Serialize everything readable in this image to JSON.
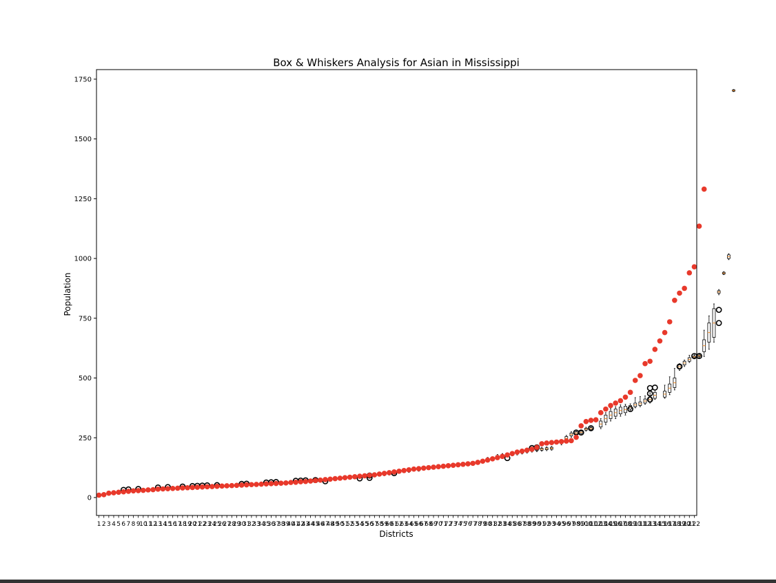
{
  "chart_data": {
    "type": "box",
    "title": "Box & Whiskers Analysis for Asian in Mississippi",
    "xlabel": "Districts",
    "ylabel": "Population",
    "ylim": [
      -75,
      1790
    ],
    "y_ticks": [
      0,
      250,
      500,
      750,
      1000,
      1250,
      1500,
      1750
    ],
    "categories": [
      "1",
      "2",
      "3",
      "4",
      "5",
      "6",
      "7",
      "8",
      "9",
      "10",
      "11",
      "12",
      "13",
      "14",
      "15",
      "16",
      "17",
      "18",
      "19",
      "20",
      "21",
      "22",
      "23",
      "24",
      "25",
      "26",
      "27",
      "28",
      "29",
      "30",
      "31",
      "32",
      "33",
      "34",
      "35",
      "36",
      "37",
      "38",
      "39",
      "40",
      "41",
      "42",
      "43",
      "44",
      "45",
      "46",
      "47",
      "48",
      "49",
      "50",
      "51",
      "52",
      "53",
      "54",
      "55",
      "56",
      "57",
      "58",
      "59",
      "60",
      "61",
      "62",
      "63",
      "64",
      "65",
      "66",
      "67",
      "68",
      "69",
      "70",
      "71",
      "72",
      "73",
      "74",
      "75",
      "76",
      "77",
      "78",
      "79",
      "80",
      "81",
      "82",
      "83",
      "84",
      "85",
      "86",
      "87",
      "88",
      "89",
      "90",
      "91",
      "92",
      "93",
      "94",
      "95",
      "96",
      "97",
      "98",
      "99",
      "100",
      "101",
      "102",
      "103",
      "104",
      "105",
      "106",
      "107",
      "108",
      "109",
      "110",
      "111",
      "112",
      "113",
      "114",
      "115",
      "116",
      "117",
      "118",
      "119",
      "120",
      "121",
      "122"
    ],
    "grid": false,
    "point_color": "#e8392b",
    "point_values": [
      10,
      12,
      18,
      20,
      22,
      24,
      26,
      28,
      29,
      30,
      32,
      33,
      35,
      36,
      37,
      38,
      39,
      40,
      41,
      42,
      43,
      44,
      45,
      46,
      47,
      48,
      49,
      50,
      51,
      52,
      53,
      54,
      55,
      56,
      57,
      58,
      59,
      60,
      61,
      63,
      64,
      66,
      67,
      69,
      71,
      73,
      75,
      77,
      79,
      81,
      83,
      85,
      87,
      89,
      91,
      93,
      95,
      98,
      101,
      104,
      107,
      110,
      113,
      116,
      119,
      121,
      123,
      125,
      127,
      129,
      131,
      133,
      135,
      137,
      139,
      141,
      143,
      147,
      152,
      157,
      162,
      167,
      172,
      178,
      184,
      190,
      194,
      198,
      202,
      210,
      225,
      228,
      230,
      232,
      234,
      236,
      238,
      252,
      300,
      318,
      323,
      325,
      355,
      370,
      385,
      395,
      405,
      420,
      440,
      490,
      510,
      560,
      570,
      620,
      655,
      690,
      735,
      825,
      855,
      875,
      940,
      965,
      1135,
      1290
    ],
    "boxes": [
      {
        "i": 6,
        "q1": 26,
        "q3": 30,
        "lo": 24,
        "hi": 32,
        "outliers": [
          32
        ]
      },
      {
        "i": 7,
        "q1": 28,
        "q3": 32,
        "lo": 26,
        "hi": 34,
        "outliers": [
          34
        ]
      },
      {
        "i": 9,
        "q1": 30,
        "q3": 34,
        "lo": 28,
        "hi": 36,
        "outliers": [
          36
        ]
      },
      {
        "i": 13,
        "q1": 36,
        "q3": 40,
        "lo": 34,
        "hi": 42,
        "outliers": [
          42
        ]
      },
      {
        "i": 15,
        "q1": 38,
        "q3": 42,
        "lo": 36,
        "hi": 44,
        "outliers": [
          44
        ]
      },
      {
        "i": 18,
        "q1": 40,
        "q3": 44,
        "lo": 38,
        "hi": 46,
        "outliers": [
          46
        ]
      },
      {
        "i": 20,
        "q1": 43,
        "q3": 46,
        "lo": 41,
        "hi": 48,
        "outliers": [
          48
        ]
      },
      {
        "i": 21,
        "q1": 44,
        "q3": 47,
        "lo": 42,
        "hi": 49,
        "outliers": [
          49
        ]
      },
      {
        "i": 22,
        "q1": 45,
        "q3": 48,
        "lo": 43,
        "hi": 50,
        "outliers": [
          50
        ]
      },
      {
        "i": 23,
        "q1": 46,
        "q3": 49,
        "lo": 44,
        "hi": 51,
        "outliers": [
          51
        ]
      },
      {
        "i": 25,
        "q1": 47,
        "q3": 50,
        "lo": 45,
        "hi": 52,
        "outliers": [
          52
        ]
      },
      {
        "i": 30,
        "q1": 52,
        "q3": 55,
        "lo": 50,
        "hi": 57,
        "outliers": [
          57
        ]
      },
      {
        "i": 31,
        "q1": 53,
        "q3": 56,
        "lo": 51,
        "hi": 58,
        "outliers": [
          58
        ]
      },
      {
        "i": 35,
        "q1": 57,
        "q3": 61,
        "lo": 55,
        "hi": 63,
        "outliers": [
          63
        ]
      },
      {
        "i": 36,
        "q1": 58,
        "q3": 62,
        "lo": 56,
        "hi": 64,
        "outliers": [
          64
        ]
      },
      {
        "i": 37,
        "q1": 59,
        "q3": 63,
        "lo": 57,
        "hi": 65,
        "outliers": [
          65
        ]
      },
      {
        "i": 38,
        "q1": 60,
        "q3": 64,
        "lo": 58,
        "hi": 66,
        "outliers": []
      },
      {
        "i": 39,
        "q1": 61,
        "q3": 65,
        "lo": 59,
        "hi": 67,
        "outliers": []
      },
      {
        "i": 41,
        "q1": 64,
        "q3": 68,
        "lo": 62,
        "hi": 70,
        "outliers": [
          70
        ]
      },
      {
        "i": 42,
        "q1": 65,
        "q3": 69,
        "lo": 63,
        "hi": 71,
        "outliers": [
          71
        ]
      },
      {
        "i": 43,
        "q1": 66,
        "q3": 70,
        "lo": 64,
        "hi": 72,
        "outliers": [
          72
        ]
      },
      {
        "i": 45,
        "q1": 69,
        "q3": 73,
        "lo": 67,
        "hi": 75,
        "outliers": [
          73
        ]
      },
      {
        "i": 47,
        "q1": 72,
        "q3": 76,
        "lo": 70,
        "hi": 78,
        "outliers": [
          68
        ]
      },
      {
        "i": 54,
        "q1": 82,
        "q3": 86,
        "lo": 80,
        "hi": 88,
        "outliers": [
          80
        ]
      },
      {
        "i": 56,
        "q1": 86,
        "q3": 90,
        "lo": 84,
        "hi": 92,
        "outliers": [
          82,
          92
        ]
      },
      {
        "i": 59,
        "q1": 94,
        "q3": 100,
        "lo": 91,
        "hi": 104,
        "outliers": []
      },
      {
        "i": 60,
        "q1": 97,
        "q3": 103,
        "lo": 94,
        "hi": 107,
        "outliers": []
      },
      {
        "i": 61,
        "q1": 100,
        "q3": 106,
        "lo": 97,
        "hi": 110,
        "outliers": [
          102
        ]
      },
      {
        "i": 64,
        "q1": 108,
        "q3": 114,
        "lo": 105,
        "hi": 118,
        "outliers": []
      },
      {
        "i": 66,
        "q1": 113,
        "q3": 119,
        "lo": 110,
        "hi": 122,
        "outliers": []
      },
      {
        "i": 76,
        "q1": 138,
        "q3": 144,
        "lo": 135,
        "hi": 147,
        "outliers": []
      },
      {
        "i": 80,
        "q1": 158,
        "q3": 164,
        "lo": 154,
        "hi": 168,
        "outliers": []
      },
      {
        "i": 82,
        "q1": 168,
        "q3": 176,
        "lo": 164,
        "hi": 180,
        "outliers": []
      },
      {
        "i": 83,
        "q1": 172,
        "q3": 180,
        "lo": 168,
        "hi": 184,
        "outliers": []
      },
      {
        "i": 84,
        "q1": 176,
        "q3": 184,
        "lo": 172,
        "hi": 186,
        "outliers": [
          165
        ]
      },
      {
        "i": 85,
        "q1": 178,
        "q3": 186,
        "lo": 174,
        "hi": 190,
        "outliers": []
      },
      {
        "i": 86,
        "q1": 182,
        "q3": 190,
        "lo": 178,
        "hi": 194,
        "outliers": []
      },
      {
        "i": 87,
        "q1": 186,
        "q3": 194,
        "lo": 182,
        "hi": 198,
        "outliers": []
      },
      {
        "i": 88,
        "q1": 190,
        "q3": 198,
        "lo": 186,
        "hi": 202,
        "outliers": []
      },
      {
        "i": 89,
        "q1": 194,
        "q3": 202,
        "lo": 190,
        "hi": 206,
        "outliers": [
          207
        ]
      },
      {
        "i": 90,
        "q1": 196,
        "q3": 204,
        "lo": 192,
        "hi": 208,
        "outliers": [
          210
        ]
      },
      {
        "i": 91,
        "q1": 198,
        "q3": 206,
        "lo": 194,
        "hi": 210,
        "outliers": []
      },
      {
        "i": 92,
        "q1": 200,
        "q3": 208,
        "lo": 196,
        "hi": 212,
        "outliers": []
      },
      {
        "i": 93,
        "q1": 202,
        "q3": 210,
        "lo": 198,
        "hi": 214,
        "outliers": []
      },
      {
        "i": 95,
        "q1": 226,
        "q3": 238,
        "lo": 220,
        "hi": 242,
        "outliers": []
      },
      {
        "i": 96,
        "q1": 240,
        "q3": 255,
        "lo": 235,
        "hi": 260,
        "outliers": []
      },
      {
        "i": 97,
        "q1": 258,
        "q3": 270,
        "lo": 252,
        "hi": 275,
        "outliers": []
      },
      {
        "i": 98,
        "q1": 265,
        "q3": 275,
        "lo": 260,
        "hi": 280,
        "outliers": [
          272
        ]
      },
      {
        "i": 99,
        "q1": 268,
        "q3": 278,
        "lo": 262,
        "hi": 282,
        "outliers": [
          272
        ]
      },
      {
        "i": 100,
        "q1": 282,
        "q3": 290,
        "lo": 278,
        "hi": 294,
        "outliers": []
      },
      {
        "i": 101,
        "q1": 284,
        "q3": 292,
        "lo": 280,
        "hi": 296,
        "outliers": [
          290
        ]
      },
      {
        "i": 103,
        "q1": 295,
        "q3": 320,
        "lo": 288,
        "hi": 330,
        "outliers": []
      },
      {
        "i": 104,
        "q1": 315,
        "q3": 345,
        "lo": 305,
        "hi": 355,
        "outliers": []
      },
      {
        "i": 105,
        "q1": 330,
        "q3": 360,
        "lo": 320,
        "hi": 372,
        "outliers": []
      },
      {
        "i": 106,
        "q1": 340,
        "q3": 370,
        "lo": 330,
        "hi": 380,
        "outliers": []
      },
      {
        "i": 107,
        "q1": 350,
        "q3": 378,
        "lo": 340,
        "hi": 388,
        "outliers": []
      },
      {
        "i": 108,
        "q1": 355,
        "q3": 382,
        "lo": 345,
        "hi": 390,
        "outliers": []
      },
      {
        "i": 109,
        "q1": 370,
        "q3": 385,
        "lo": 365,
        "hi": 392,
        "outliers": [
          370
        ]
      },
      {
        "i": 110,
        "q1": 380,
        "q3": 395,
        "lo": 375,
        "hi": 418,
        "outliers": []
      },
      {
        "i": 111,
        "q1": 385,
        "q3": 400,
        "lo": 380,
        "hi": 422,
        "outliers": []
      },
      {
        "i": 112,
        "q1": 395,
        "q3": 412,
        "lo": 390,
        "hi": 425,
        "outliers": []
      },
      {
        "i": 113,
        "q1": 400,
        "q3": 420,
        "lo": 395,
        "hi": 438,
        "outliers": [
          410,
          435,
          458
        ]
      },
      {
        "i": 114,
        "q1": 415,
        "q3": 440,
        "lo": 410,
        "hi": 450,
        "outliers": [
          460
        ]
      },
      {
        "i": 116,
        "q1": 420,
        "q3": 445,
        "lo": 415,
        "hi": 470,
        "outliers": []
      },
      {
        "i": 117,
        "q1": 440,
        "q3": 475,
        "lo": 430,
        "hi": 505,
        "outliers": []
      },
      {
        "i": 118,
        "q1": 460,
        "q3": 500,
        "lo": 450,
        "hi": 540,
        "outliers": []
      },
      {
        "i": 119,
        "q1": 540,
        "q3": 555,
        "lo": 532,
        "hi": 560,
        "outliers": [
          548
        ]
      },
      {
        "i": 120,
        "q1": 555,
        "q3": 570,
        "lo": 548,
        "hi": 575,
        "outliers": []
      },
      {
        "i": 121,
        "q1": 570,
        "q3": 585,
        "lo": 565,
        "hi": 595,
        "outliers": []
      },
      {
        "i": 122,
        "q1": 585,
        "q3": 592,
        "lo": 580,
        "hi": 598,
        "outliers": [
          592
        ]
      },
      {
        "i": 123,
        "q1": 590,
        "q3": 596,
        "lo": 585,
        "hi": 600,
        "outliers": [
          592
        ]
      },
      {
        "i": 124,
        "q1": 610,
        "q3": 660,
        "lo": 590,
        "hi": 700,
        "outliers": []
      },
      {
        "i": 125,
        "q1": 650,
        "q3": 730,
        "lo": 620,
        "hi": 760,
        "outliers": []
      },
      {
        "i": 126,
        "q1": 670,
        "q3": 790,
        "lo": 650,
        "hi": 810,
        "outliers": []
      },
      {
        "i": 127,
        "q1": 855,
        "q3": 865,
        "lo": 848,
        "hi": 870,
        "outliers": [
          730,
          785
        ]
      },
      {
        "i": 128,
        "q1": 935,
        "q3": 942,
        "lo": 932,
        "hi": 945,
        "outliers": []
      },
      {
        "i": 129,
        "q1": 1000,
        "q3": 1015,
        "lo": 995,
        "hi": 1020,
        "outliers": []
      },
      {
        "i": 130,
        "q1": 1700,
        "q3": 1705,
        "lo": 1698,
        "hi": 1707,
        "outliers": []
      }
    ]
  }
}
